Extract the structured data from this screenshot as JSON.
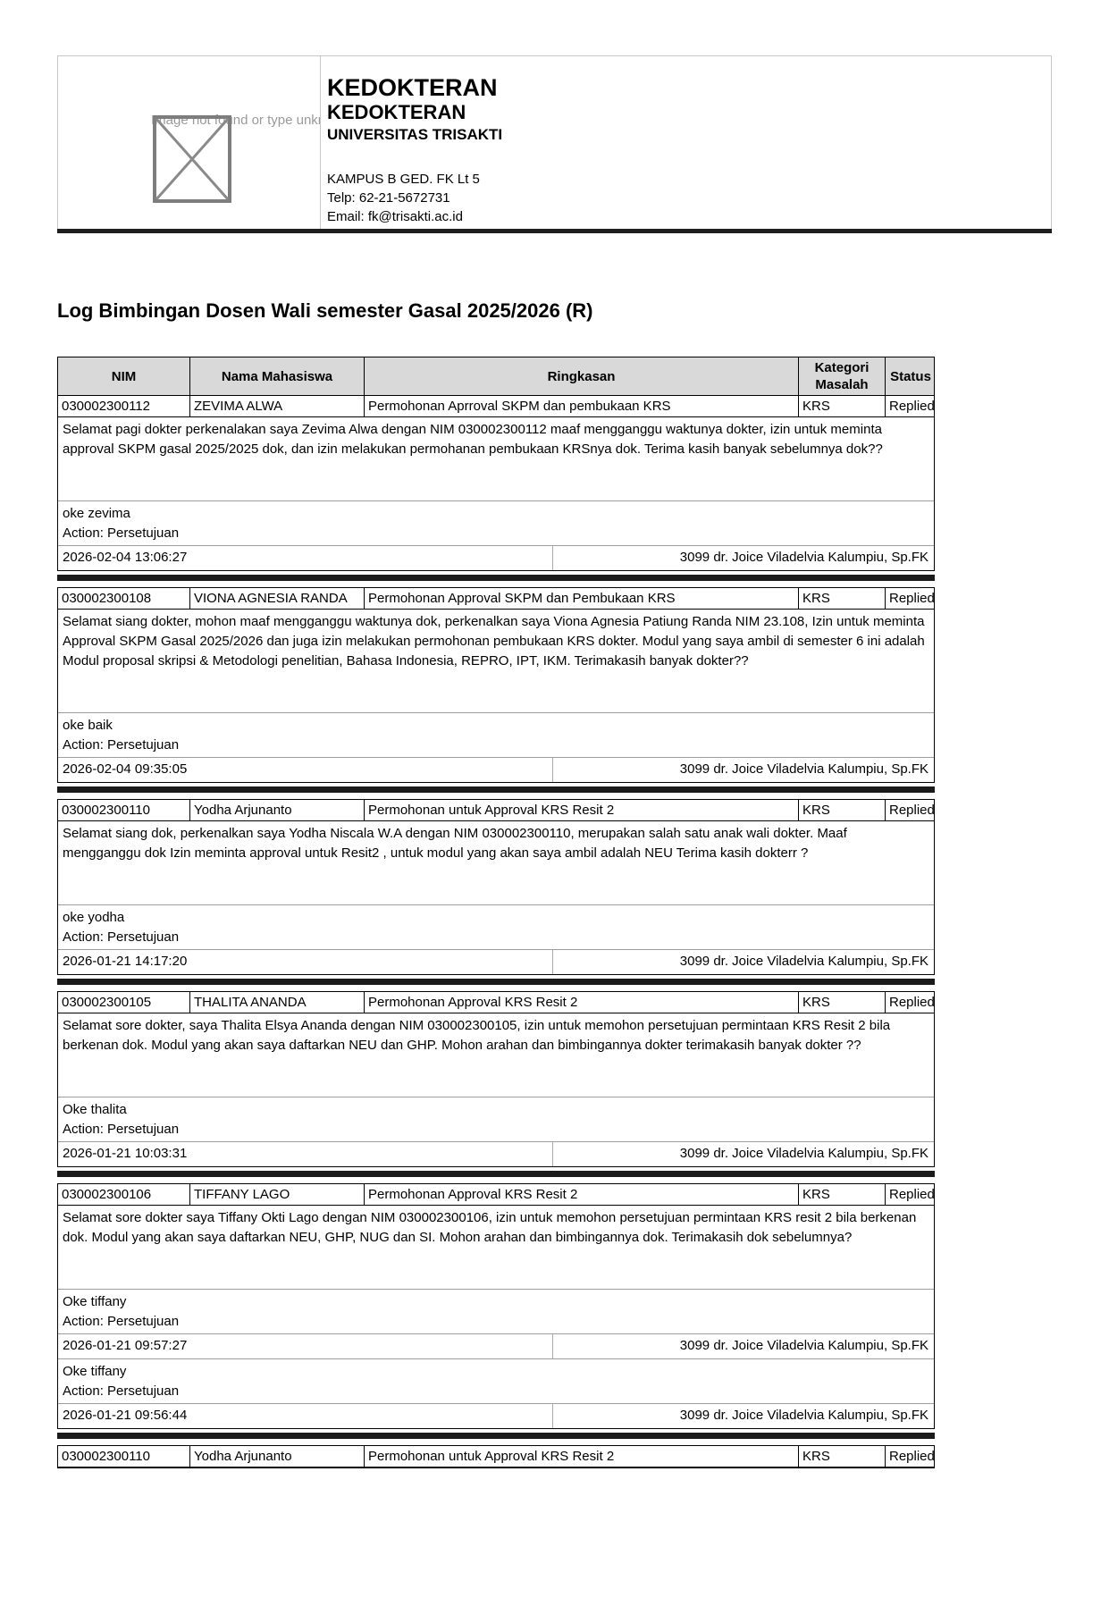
{
  "header": {
    "image_placeholder_text": "Image not found or type unknown",
    "faculty_line1": "KEDOKTERAN",
    "faculty_line2": "KEDOKTERAN",
    "university": "UNIVERSITAS TRISAKTI",
    "address": "KAMPUS B GED. FK Lt 5",
    "phone": "Telp: 62-21-5672731",
    "email": "Email: fk@trisakti.ac.id"
  },
  "page_title": "Log Bimbingan Dosen Wali semester Gasal 2025/2026 (R)",
  "colors": {
    "table_header_bg": "#d9d9d9",
    "divider_bar": "#1b1b1b",
    "placeholder_gray": "#9a9a9a"
  },
  "table": {
    "columns": [
      "NIM",
      "Nama Mahasiswa",
      "Ringkasan",
      "Kategori Masalah",
      "Status"
    ],
    "entries": [
      {
        "nim": "030002300112",
        "nama": "ZEVIMA ALWA",
        "ringkasan": "Permohonan Aprroval SKPM dan pembukaan KRS",
        "kategori": "KRS",
        "status": "Replied",
        "message": "Selamat pagi dokter perkenalakan saya Zevima Alwa dengan NIM 030002300112 maaf mengganggu waktunya dokter, izin untuk meminta approval SKPM gasal 2025/2025 dok, dan izin melakukan permohanan pembukaan KRSnya dok. Terima kasih banyak sebelumnya dok??",
        "replies": [
          {
            "text": "oke zevima",
            "action": "Action: Persetujuan",
            "timestamp": "2026-02-04 13:06:27",
            "advisor": "3099 dr. Joice Viladelvia Kalumpiu, Sp.FK"
          }
        ]
      },
      {
        "nim": "030002300108",
        "nama": "VIONA AGNESIA RANDA",
        "ringkasan": "Permohonan Approval SKPM dan Pembukaan KRS",
        "kategori": "KRS",
        "status": "Replied",
        "message": "Selamat siang dokter, mohon maaf mengganggu waktunya dok, perkenalkan saya Viona Agnesia Patiung Randa NIM 23.108, Izin untuk meminta Approval SKPM Gasal 2025/2026 dan juga izin melakukan permohonan pembukaan KRS dokter. Modul yang saya ambil di semester 6 ini adalah Modul proposal skripsi & Metodologi penelitian, Bahasa Indonesia, REPRO, IPT, IKM. Terimakasih banyak dokter??",
        "replies": [
          {
            "text": "oke baik",
            "action": "Action: Persetujuan",
            "timestamp": "2026-02-04 09:35:05",
            "advisor": "3099 dr. Joice Viladelvia Kalumpiu, Sp.FK"
          }
        ]
      },
      {
        "nim": "030002300110",
        "nama": "Yodha Arjunanto",
        "ringkasan": "Permohonan untuk Approval KRS Resit 2",
        "kategori": "KRS",
        "status": "Replied",
        "message": "Selamat siang dok, perkenalkan saya Yodha Niscala W.A dengan NIM 030002300110, merupakan salah satu anak wali dokter. Maaf mengganggu dok Izin meminta approval untuk Resit2 , untuk modul yang akan saya ambil adalah NEU Terima kasih dokterr ?",
        "replies": [
          {
            "text": "oke yodha",
            "action": "Action: Persetujuan",
            "timestamp": "2026-01-21 14:17:20",
            "advisor": "3099 dr. Joice Viladelvia Kalumpiu, Sp.FK"
          }
        ]
      },
      {
        "nim": "030002300105",
        "nama": "THALITA ANANDA",
        "ringkasan": "Permohonan Approval KRS Resit 2",
        "kategori": "KRS",
        "status": "Replied",
        "message": "Selamat sore dokter, saya Thalita Elsya Ananda dengan NIM 030002300105, izin untuk memohon persetujuan permintaan KRS Resit 2 bila berkenan dok. Modul yang akan saya daftarkan NEU dan GHP. Mohon arahan dan bimbingannya dokter terimakasih banyak dokter ??",
        "replies": [
          {
            "text": "Oke thalita",
            "action": "Action: Persetujuan",
            "timestamp": "2026-01-21 10:03:31",
            "advisor": "3099 dr. Joice Viladelvia Kalumpiu, Sp.FK"
          }
        ]
      },
      {
        "nim": "030002300106",
        "nama": "TIFFANY LAGO",
        "ringkasan": "Permohonan Approval KRS Resit 2",
        "kategori": "KRS",
        "status": "Replied",
        "message": "Selamat sore dokter saya Tiffany Okti Lago dengan NIM 030002300106, izin untuk memohon persetujuan permintaan KRS resit 2 bila berkenan dok. Modul yang akan saya daftarkan NEU, GHP, NUG dan SI. Mohon arahan dan bimbingannya dok. Terimakasih dok sebelumnya?",
        "replies": [
          {
            "text": "Oke tiffany",
            "action": "Action: Persetujuan",
            "timestamp": "2026-01-21 09:57:27",
            "advisor": "3099 dr. Joice Viladelvia Kalumpiu, Sp.FK"
          },
          {
            "text": "Oke tiffany",
            "action": "Action: Persetujuan",
            "timestamp": "2026-01-21 09:56:44",
            "advisor": "3099 dr. Joice Viladelvia Kalumpiu, Sp.FK"
          }
        ]
      },
      {
        "nim": "030002300110",
        "nama": "Yodha Arjunanto",
        "ringkasan": "Permohonan untuk Approval KRS Resit 2",
        "kategori": "KRS",
        "status": "Replied",
        "message": null,
        "replies": []
      }
    ]
  }
}
